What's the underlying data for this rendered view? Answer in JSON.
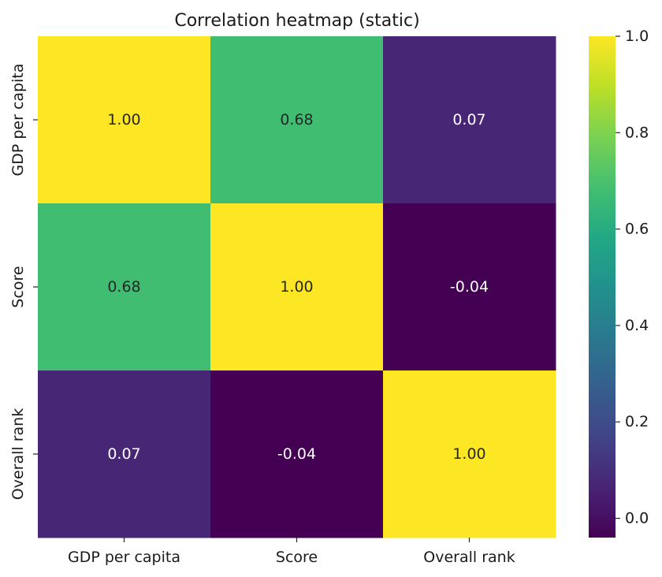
{
  "chart_data": {
    "type": "heatmap",
    "title": "Correlation heatmap (static)",
    "xlabel": "",
    "ylabel": "",
    "x_categories": [
      "GDP per capita",
      "Score",
      "Overall rank"
    ],
    "y_categories": [
      "GDP per capita",
      "Score",
      "Overall rank"
    ],
    "values": [
      [
        1.0,
        0.68,
        0.07
      ],
      [
        0.68,
        1.0,
        -0.04
      ],
      [
        0.07,
        -0.04,
        1.0
      ]
    ],
    "annotations": [
      [
        "1.00",
        "0.68",
        "0.07"
      ],
      [
        "0.68",
        "1.00",
        "-0.04"
      ],
      [
        "0.07",
        "-0.04",
        "1.00"
      ]
    ],
    "colormap": "viridis",
    "colorbar": {
      "vmin": -0.04,
      "vmax": 1.0,
      "ticks": [
        0.0,
        0.2,
        0.4,
        0.6,
        0.8,
        1.0
      ],
      "tick_labels": [
        "0.0",
        "0.2",
        "0.4",
        "0.6",
        "0.8",
        "1.0"
      ]
    }
  }
}
